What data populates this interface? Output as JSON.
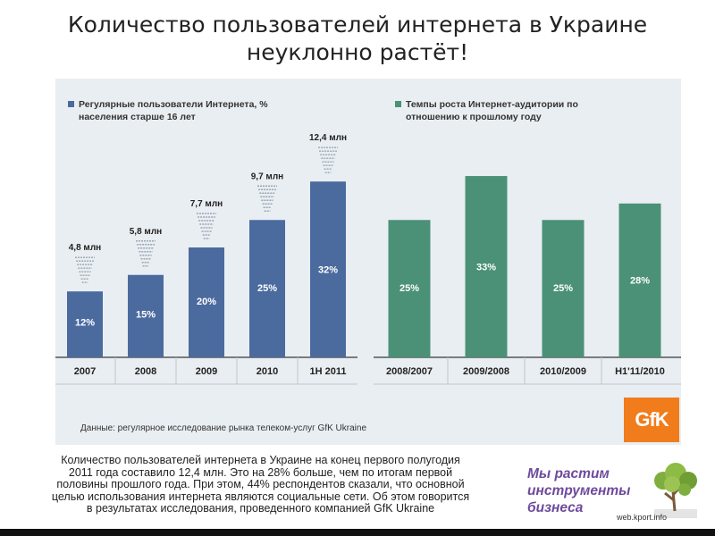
{
  "title_line1": "Количество пользователей интернета в Украине",
  "title_line2": "неуклонно растёт!",
  "chart_data": [
    {
      "type": "bar",
      "legend": "Регулярные пользователи Интернета, % населения старше 16 лет",
      "color": "#4b6b9f",
      "categories": [
        "2007",
        "2008",
        "2009",
        "2010",
        "1H 2011"
      ],
      "values": [
        12,
        15,
        20,
        25,
        32
      ],
      "value_labels": [
        "12%",
        "15%",
        "20%",
        "25%",
        "32%"
      ],
      "top_labels": [
        "4,8 млн",
        "5,8 млн",
        "7,7 млн",
        "9,7 млн",
        "12,4 млн"
      ],
      "ylim": [
        0,
        40
      ]
    },
    {
      "type": "bar",
      "legend": "Темпы роста Интернет-аудитории по отношению к прошлому году",
      "color": "#4a9178",
      "categories": [
        "2008/2007",
        "2009/2008",
        "2010/2009",
        "H1'11/2010"
      ],
      "values": [
        25,
        33,
        25,
        28
      ],
      "value_labels": [
        "25%",
        "33%",
        "25%",
        "28%"
      ],
      "ylim": [
        0,
        40
      ]
    }
  ],
  "source": "Данные: регулярное исследование рынка телеком-услуг GfK Ukraine",
  "logo_text": "GfK",
  "caption": [
    "Количество пользователей интернета в Украине на конец первого полугодия",
    "2011 года составило 12,4 млн. Это на 28% больше, чем по итогам первой",
    "половины прошлого года. При этом, 44% респондентов сказали, что основной",
    "целью использования интернета являются социальные сети. Об этом говорится",
    "в результатах исследования, проведенного компанией GfK Ukraine"
  ],
  "brand": [
    "Мы растим",
    "инструменты",
    "бизнеса"
  ],
  "site": "web.kport.info",
  "colors": {
    "panel": "#e9eef2",
    "logo": "#f07c1c",
    "brand": "#6d4a9c"
  }
}
